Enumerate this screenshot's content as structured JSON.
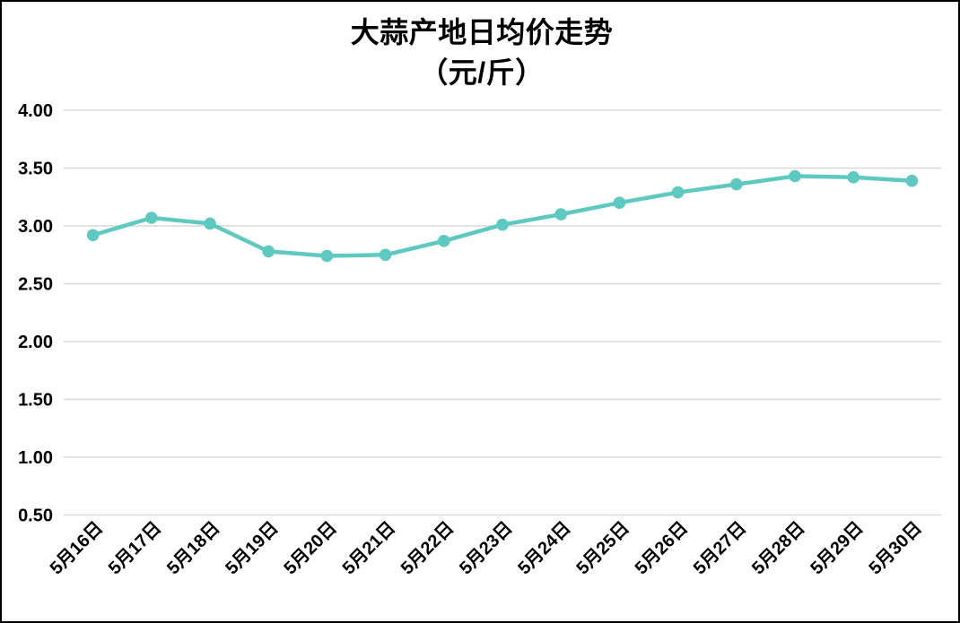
{
  "chart_data": {
    "type": "line",
    "title": "大蒜产地日均价走势",
    "subtitle": "（元/斤）",
    "categories": [
      "5月16日",
      "5月17日",
      "5月18日",
      "5月19日",
      "5月20日",
      "5月21日",
      "5月22日",
      "5月23日",
      "5月24日",
      "5月25日",
      "5月26日",
      "5月27日",
      "5月28日",
      "5月29日",
      "5月30日"
    ],
    "values": [
      2.92,
      3.07,
      3.02,
      2.78,
      2.74,
      2.75,
      2.87,
      3.01,
      3.1,
      3.2,
      3.29,
      3.36,
      3.43,
      3.42,
      3.39
    ],
    "xlabel": "",
    "ylabel": "",
    "ylim": [
      0.5,
      4.0
    ],
    "ytick_step": 0.5,
    "ytick_labels": [
      "0.50",
      "1.00",
      "1.50",
      "2.00",
      "2.50",
      "3.00",
      "3.50",
      "4.00"
    ],
    "xtick_rotation_deg": 45,
    "grid": "horizontal",
    "legend": "none",
    "colors": {
      "line": "#5EC9C1",
      "marker": "#5EC9C1",
      "gridline": "#D9D9D9",
      "text": "#000000",
      "background": "#FFFFFF",
      "border": "#000000"
    },
    "marker": "circle"
  }
}
